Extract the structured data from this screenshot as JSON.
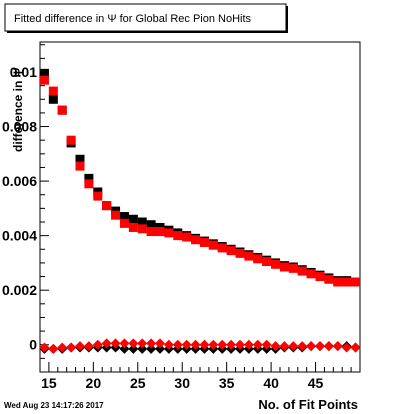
{
  "chart_data": {
    "type": "scatter",
    "title": "Fitted difference in  Ψ  for Global Rec Pion NoHits",
    "xlabel": "No. of Fit Points",
    "ylabel": "difference  in  Ψ",
    "footer": "Wed Aug 23 14:17:26 2017",
    "xlim": [
      14,
      50
    ],
    "ylim": [
      -0.001,
      0.0111
    ],
    "x_ticks": [
      {
        "value": 15,
        "label": "15"
      },
      {
        "value": 20,
        "label": "20"
      },
      {
        "value": 25,
        "label": "25"
      },
      {
        "value": 30,
        "label": "30"
      },
      {
        "value": 35,
        "label": "35"
      },
      {
        "value": 40,
        "label": "40"
      },
      {
        "value": 45,
        "label": "45"
      }
    ],
    "y_ticks": [
      {
        "value": 0,
        "label": "0"
      },
      {
        "value": 0.002,
        "label": "0.002"
      },
      {
        "value": 0.004,
        "label": "0.004"
      },
      {
        "value": 0.006,
        "label": "0.006"
      },
      {
        "value": 0.008,
        "label": "0.008"
      },
      {
        "value": 0.01,
        "label": "0.01"
      }
    ],
    "colors": {
      "black": "#000000",
      "red": "#ff0000",
      "frame": "#000000"
    },
    "series": [
      {
        "marker": "square",
        "color": "#000000",
        "x": [
          14.5,
          15.5,
          16.5,
          17.5,
          18.5,
          19.5,
          20.5,
          21.5,
          22.5,
          23.5,
          24.5,
          25.5,
          26.5,
          27.5,
          28.5,
          29.5,
          30.5,
          31.5,
          32.5,
          33.5,
          34.5,
          35.5,
          36.5,
          37.5,
          38.5,
          39.5,
          40.5,
          41.5,
          42.5,
          43.5,
          44.5,
          45.5,
          46.5,
          47.5,
          48.5,
          49.5
        ],
        "y": [
          0.00995,
          0.009,
          0.0086,
          0.0074,
          0.0068,
          0.0061,
          0.0056,
          0.0051,
          0.0049,
          0.0047,
          0.0046,
          0.0045,
          0.0044,
          0.0043,
          0.0042,
          0.0041,
          0.004,
          0.0039,
          0.0038,
          0.0037,
          0.0036,
          0.0035,
          0.0034,
          0.0033,
          0.0032,
          0.0031,
          0.003,
          0.0029,
          0.00285,
          0.00275,
          0.00265,
          0.00255,
          0.00245,
          0.00235,
          0.00235,
          0.0023
        ]
      },
      {
        "marker": "square",
        "color": "#ff0000",
        "x": [
          14.5,
          15.5,
          16.5,
          17.5,
          18.5,
          19.5,
          20.5,
          21.5,
          22.5,
          23.5,
          24.5,
          25.5,
          26.5,
          27.5,
          28.5,
          29.5,
          30.5,
          31.5,
          32.5,
          33.5,
          34.5,
          35.5,
          36.5,
          37.5,
          38.5,
          39.5,
          40.5,
          41.5,
          42.5,
          43.5,
          44.5,
          45.5,
          46.5,
          47.5,
          48.5,
          49.5
        ],
        "y": [
          0.0097,
          0.0093,
          0.0086,
          0.0075,
          0.00655,
          0.0059,
          0.00545,
          0.0051,
          0.00475,
          0.00445,
          0.0043,
          0.00425,
          0.00415,
          0.00415,
          0.0041,
          0.004,
          0.00395,
          0.00385,
          0.00375,
          0.00365,
          0.00355,
          0.00345,
          0.00335,
          0.00325,
          0.00315,
          0.00305,
          0.00295,
          0.00285,
          0.0028,
          0.0027,
          0.0026,
          0.0025,
          0.0024,
          0.0023,
          0.0023,
          0.0023
        ]
      },
      {
        "marker": "diamond",
        "color": "#000000",
        "x": [
          14.5,
          15.5,
          16.5,
          17.5,
          18.5,
          19.5,
          20.5,
          21.5,
          22.5,
          23.5,
          24.5,
          25.5,
          26.5,
          27.5,
          28.5,
          29.5,
          30.5,
          31.5,
          32.5,
          33.5,
          34.5,
          35.5,
          36.5,
          37.5,
          38.5,
          39.5,
          40.5,
          41.5,
          42.5,
          43.5,
          44.5,
          45.5,
          46.5,
          47.5,
          48.5,
          49.5
        ],
        "y": [
          -0.00015,
          -0.00015,
          -0.00015,
          -0.0001,
          -0.0001,
          -0.0001,
          -0.0001,
          -0.0001,
          -0.0001,
          -0.00015,
          -0.00015,
          -0.00015,
          -0.00015,
          -0.00015,
          -0.00015,
          -0.00015,
          -0.00015,
          -0.00015,
          -0.00015,
          -0.00015,
          -0.00015,
          -0.00015,
          -0.00015,
          -0.00015,
          -0.00015,
          -0.00015,
          -0.00015,
          -0.0001,
          -0.0001,
          -0.0001,
          -5e-05,
          -5e-05,
          -5e-05,
          -5e-05,
          -5e-05,
          -0.0001
        ]
      },
      {
        "marker": "diamond",
        "color": "#ff0000",
        "x": [
          14.5,
          15.5,
          16.5,
          17.5,
          18.5,
          19.5,
          20.5,
          21.5,
          22.5,
          23.5,
          24.5,
          25.5,
          26.5,
          27.5,
          28.5,
          29.5,
          30.5,
          31.5,
          32.5,
          33.5,
          34.5,
          35.5,
          36.5,
          37.5,
          38.5,
          39.5,
          40.5,
          41.5,
          42.5,
          43.5,
          44.5,
          45.5,
          46.5,
          47.5,
          48.5,
          49.5
        ],
        "y": [
          -0.0001,
          -0.00015,
          -0.0001,
          -0.0001,
          -5e-05,
          -5e-05,
          0.0,
          5e-05,
          5e-05,
          5e-05,
          5e-05,
          5e-05,
          5e-05,
          5e-05,
          0.0,
          0.0,
          0.0,
          0.0,
          0.0,
          0.0,
          0.0,
          0.0,
          0.0,
          0.0,
          0.0,
          0.0,
          -5e-05,
          -5e-05,
          -5e-05,
          -5e-05,
          -5e-05,
          -5e-05,
          -5e-05,
          -5e-05,
          -0.0001,
          -0.0001
        ]
      }
    ]
  }
}
